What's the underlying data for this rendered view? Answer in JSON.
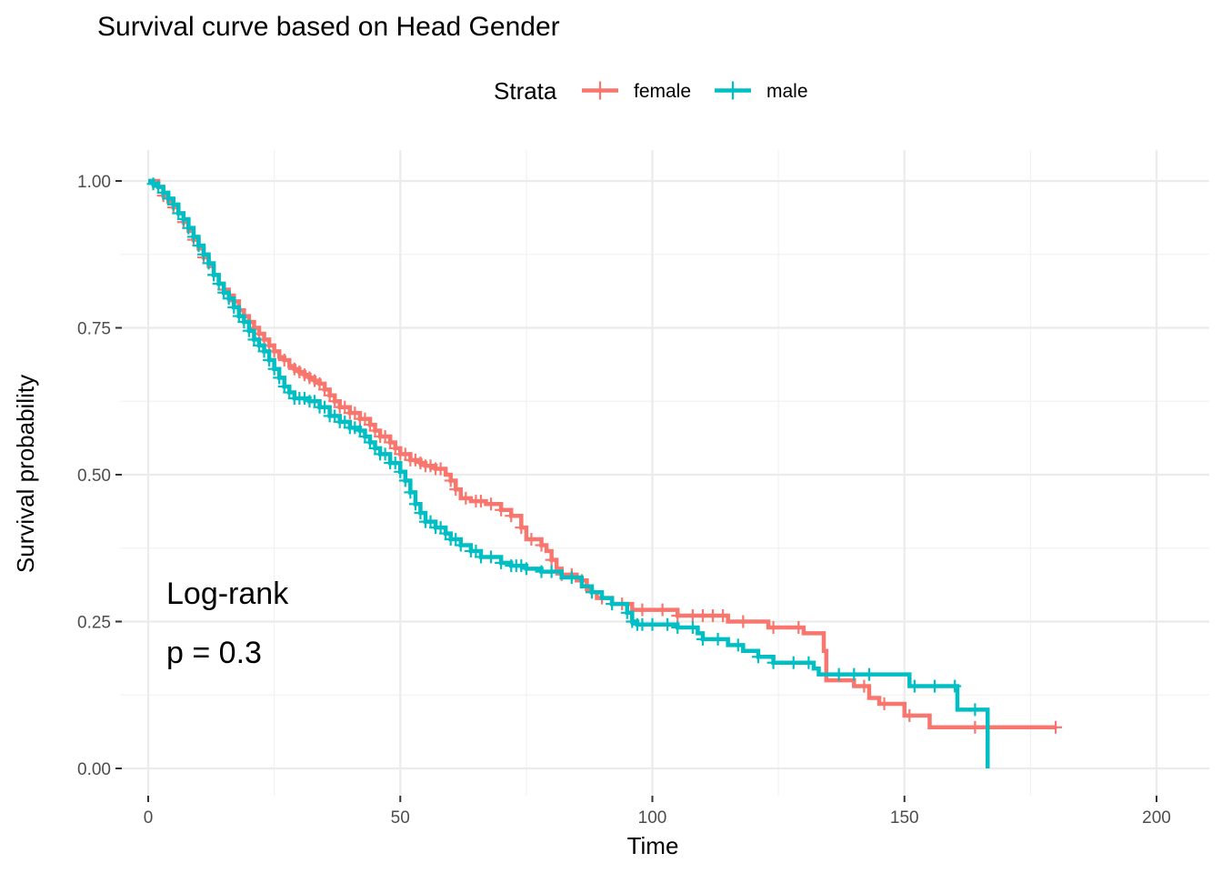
{
  "chart_data": {
    "type": "line",
    "title": "Survival curve based on Head Gender",
    "xlabel": "Time",
    "ylabel": "Survival probability",
    "xlim": [
      0,
      200
    ],
    "ylim": [
      0,
      1
    ],
    "x_ticks": [
      "0",
      "50",
      "100",
      "150",
      "200"
    ],
    "y_ticks": [
      "0.00",
      "0.25",
      "0.50",
      "0.75",
      "1.00"
    ],
    "grid": true,
    "legend": {
      "title": "Strata",
      "position": "top",
      "entries": [
        "female",
        "male"
      ]
    },
    "annotations": [
      "Log-rank",
      "p = 0.3"
    ],
    "series": [
      {
        "name": "female",
        "color": "#F8766D",
        "step_points": [
          [
            0,
            1.0
          ],
          [
            2,
            0.99
          ],
          [
            3,
            0.975
          ],
          [
            4,
            0.965
          ],
          [
            5,
            0.955
          ],
          [
            6,
            0.945
          ],
          [
            7,
            0.93
          ],
          [
            8,
            0.915
          ],
          [
            9,
            0.9
          ],
          [
            10,
            0.885
          ],
          [
            11,
            0.87
          ],
          [
            12,
            0.855
          ],
          [
            13,
            0.84
          ],
          [
            14,
            0.825
          ],
          [
            15,
            0.815
          ],
          [
            16,
            0.805
          ],
          [
            17,
            0.795
          ],
          [
            18,
            0.78
          ],
          [
            19,
            0.77
          ],
          [
            20,
            0.76
          ],
          [
            21,
            0.75
          ],
          [
            22,
            0.74
          ],
          [
            23,
            0.73
          ],
          [
            24,
            0.72
          ],
          [
            25,
            0.71
          ],
          [
            26,
            0.7
          ],
          [
            27,
            0.695
          ],
          [
            28,
            0.685
          ],
          [
            29,
            0.68
          ],
          [
            30,
            0.675
          ],
          [
            31,
            0.67
          ],
          [
            32,
            0.665
          ],
          [
            33,
            0.66
          ],
          [
            34,
            0.655
          ],
          [
            35,
            0.645
          ],
          [
            36,
            0.635
          ],
          [
            37,
            0.625
          ],
          [
            38,
            0.615
          ],
          [
            40,
            0.605
          ],
          [
            42,
            0.595
          ],
          [
            44,
            0.585
          ],
          [
            45,
            0.575
          ],
          [
            46,
            0.565
          ],
          [
            48,
            0.555
          ],
          [
            49,
            0.545
          ],
          [
            50,
            0.535
          ],
          [
            52,
            0.525
          ],
          [
            54,
            0.52
          ],
          [
            55,
            0.515
          ],
          [
            57,
            0.51
          ],
          [
            59,
            0.5
          ],
          [
            60,
            0.49
          ],
          [
            61,
            0.475
          ],
          [
            62,
            0.46
          ],
          [
            64,
            0.455
          ],
          [
            67,
            0.45
          ],
          [
            70,
            0.44
          ],
          [
            72,
            0.43
          ],
          [
            74,
            0.41
          ],
          [
            75,
            0.39
          ],
          [
            78,
            0.38
          ],
          [
            79,
            0.37
          ],
          [
            80,
            0.355
          ],
          [
            81,
            0.34
          ],
          [
            82,
            0.33
          ],
          [
            85,
            0.32
          ],
          [
            87,
            0.305
          ],
          [
            88,
            0.3
          ],
          [
            89,
            0.29
          ],
          [
            92,
            0.28
          ],
          [
            96,
            0.27
          ],
          [
            100,
            0.27
          ],
          [
            105,
            0.26
          ],
          [
            115,
            0.25
          ],
          [
            123,
            0.24
          ],
          [
            130,
            0.23
          ],
          [
            134,
            0.2
          ],
          [
            134.5,
            0.15
          ],
          [
            140,
            0.14
          ],
          [
            143,
            0.12
          ],
          [
            145,
            0.11
          ],
          [
            150,
            0.09
          ],
          [
            155,
            0.07
          ],
          [
            180,
            0.07
          ]
        ],
        "censor_times": [
          3,
          5,
          7,
          9,
          11,
          13,
          15,
          17,
          19,
          21,
          22,
          23,
          24,
          25,
          27,
          29,
          30,
          31,
          32,
          33,
          34,
          35,
          36,
          37,
          38,
          39,
          40,
          41,
          42,
          43,
          44,
          45,
          46,
          47,
          48,
          49,
          50,
          51,
          52,
          53,
          54,
          55,
          56,
          57,
          58,
          60,
          61,
          63,
          65,
          66,
          68,
          70,
          72,
          74,
          76,
          78,
          80,
          82,
          84,
          86,
          88,
          90,
          94,
          98,
          102,
          105,
          108,
          110,
          112,
          114,
          118,
          124,
          129,
          142,
          146,
          151,
          164,
          180
        ]
      },
      {
        "name": "male",
        "color": "#00BFC4",
        "step_points": [
          [
            0,
            1.0
          ],
          [
            1,
            0.995
          ],
          [
            2,
            0.99
          ],
          [
            3,
            0.98
          ],
          [
            4,
            0.97
          ],
          [
            5,
            0.96
          ],
          [
            6,
            0.945
          ],
          [
            7,
            0.935
          ],
          [
            8,
            0.92
          ],
          [
            9,
            0.905
          ],
          [
            10,
            0.89
          ],
          [
            11,
            0.875
          ],
          [
            12,
            0.86
          ],
          [
            13,
            0.84
          ],
          [
            14,
            0.825
          ],
          [
            15,
            0.81
          ],
          [
            16,
            0.8
          ],
          [
            17,
            0.785
          ],
          [
            18,
            0.77
          ],
          [
            19,
            0.76
          ],
          [
            20,
            0.745
          ],
          [
            21,
            0.73
          ],
          [
            22,
            0.72
          ],
          [
            23,
            0.71
          ],
          [
            24,
            0.695
          ],
          [
            25,
            0.68
          ],
          [
            26,
            0.665
          ],
          [
            27,
            0.65
          ],
          [
            28,
            0.64
          ],
          [
            29,
            0.63
          ],
          [
            32,
            0.625
          ],
          [
            34,
            0.615
          ],
          [
            36,
            0.6
          ],
          [
            38,
            0.59
          ],
          [
            40,
            0.58
          ],
          [
            42,
            0.575
          ],
          [
            43,
            0.565
          ],
          [
            44,
            0.555
          ],
          [
            45,
            0.545
          ],
          [
            46,
            0.535
          ],
          [
            48,
            0.52
          ],
          [
            50,
            0.505
          ],
          [
            51,
            0.49
          ],
          [
            52,
            0.47
          ],
          [
            53,
            0.45
          ],
          [
            54,
            0.435
          ],
          [
            55,
            0.42
          ],
          [
            57,
            0.41
          ],
          [
            59,
            0.4
          ],
          [
            60,
            0.39
          ],
          [
            62,
            0.38
          ],
          [
            64,
            0.37
          ],
          [
            66,
            0.36
          ],
          [
            70,
            0.35
          ],
          [
            72,
            0.345
          ],
          [
            75,
            0.34
          ],
          [
            78,
            0.335
          ],
          [
            82,
            0.325
          ],
          [
            86,
            0.31
          ],
          [
            88,
            0.3
          ],
          [
            90,
            0.29
          ],
          [
            92,
            0.28
          ],
          [
            95,
            0.265
          ],
          [
            96,
            0.25
          ],
          [
            97,
            0.245
          ],
          [
            105,
            0.24
          ],
          [
            109,
            0.23
          ],
          [
            110,
            0.22
          ],
          [
            115,
            0.21
          ],
          [
            118,
            0.2
          ],
          [
            121,
            0.19
          ],
          [
            124,
            0.18
          ],
          [
            132,
            0.17
          ],
          [
            133,
            0.16
          ],
          [
            150,
            0.16
          ],
          [
            151,
            0.14
          ],
          [
            160,
            0.14
          ],
          [
            160.5,
            0.1
          ],
          [
            166,
            0.1
          ],
          [
            166.5,
            0.0
          ]
        ],
        "censor_times": [
          1,
          2,
          3,
          4,
          5,
          6,
          7,
          8,
          9,
          10,
          11,
          12,
          13,
          14,
          15,
          16,
          17,
          18,
          19,
          20,
          21,
          22,
          23,
          24,
          25,
          26,
          27,
          28,
          29,
          30,
          31,
          32,
          33,
          34,
          35,
          36,
          37,
          38,
          39,
          40,
          41,
          42,
          43,
          44,
          45,
          46,
          47,
          48,
          49,
          50,
          51,
          52,
          53,
          54,
          55,
          56,
          57,
          58,
          59,
          60,
          61,
          62,
          64,
          65,
          66,
          68,
          70,
          72,
          73,
          74,
          75,
          78,
          80,
          84,
          88,
          92,
          95,
          96,
          97,
          98,
          100,
          103,
          105,
          108,
          110,
          113,
          117,
          121,
          124,
          128,
          131,
          137,
          140,
          143,
          152,
          156,
          160,
          164
        ]
      }
    ]
  }
}
